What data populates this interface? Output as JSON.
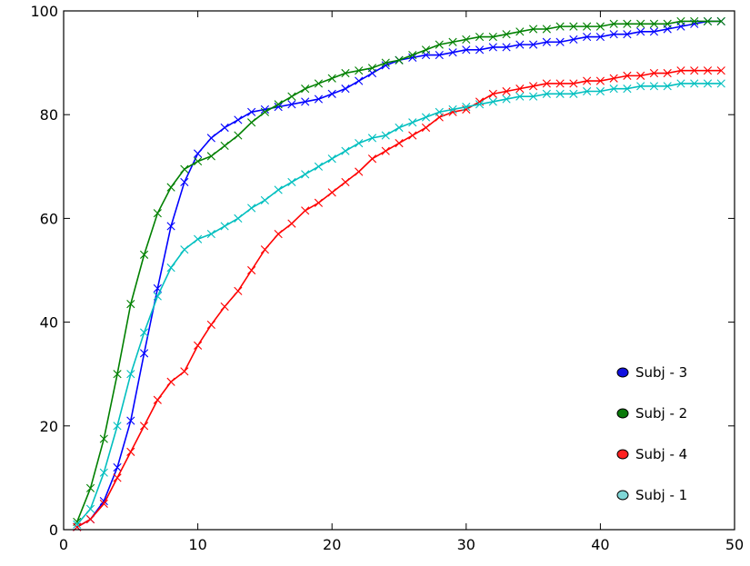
{
  "chart_data": {
    "type": "line",
    "title": "",
    "xlabel": "",
    "ylabel": "",
    "xlim": [
      0,
      50
    ],
    "ylim": [
      0,
      100
    ],
    "xticks": [
      "0",
      "10",
      "20",
      "30",
      "40",
      "50"
    ],
    "yticks": [
      "0",
      "20",
      "40",
      "60",
      "80",
      "100"
    ],
    "grid": false,
    "legend_position": "lower-right",
    "marker": "x",
    "x": [
      1,
      2,
      3,
      4,
      5,
      6,
      7,
      8,
      9,
      10,
      11,
      12,
      13,
      14,
      15,
      16,
      17,
      18,
      19,
      20,
      21,
      22,
      23,
      24,
      25,
      26,
      27,
      28,
      29,
      30,
      31,
      32,
      33,
      34,
      35,
      36,
      37,
      38,
      39,
      40,
      41,
      42,
      43,
      44,
      45,
      46,
      47,
      48,
      49
    ],
    "series": [
      {
        "name": "Subj - 3",
        "color": "#0000ff",
        "legend_marker_color": "#1010e0",
        "values": [
          0.5,
          2,
          5.5,
          12,
          21,
          34,
          46.5,
          58.5,
          67,
          72.5,
          75.5,
          77.5,
          79,
          80.5,
          81,
          81.5,
          82,
          82.5,
          83,
          84,
          85,
          86.5,
          88,
          89.5,
          90.5,
          91,
          91.5,
          91.5,
          92,
          92.5,
          92.5,
          93,
          93,
          93.5,
          93.5,
          94,
          94,
          94.5,
          95,
          95,
          95.5,
          95.5,
          96,
          96,
          96.5,
          97,
          97.5,
          98,
          98
        ]
      },
      {
        "name": "Subj - 2",
        "color": "#008000",
        "legend_marker_color": "#0a7a0a",
        "values": [
          1.5,
          8,
          17.5,
          30,
          43.5,
          53,
          61,
          66,
          69.5,
          71,
          72,
          74,
          76,
          78.5,
          80.5,
          82,
          83.5,
          85,
          86,
          87,
          88,
          88.5,
          89,
          90,
          90.5,
          91.5,
          92.5,
          93.5,
          94,
          94.5,
          95,
          95,
          95.5,
          96,
          96.5,
          96.5,
          97,
          97,
          97,
          97,
          97.5,
          97.5,
          97.5,
          97.5,
          97.5,
          98,
          98,
          98,
          98
        ]
      },
      {
        "name": "Subj - 4",
        "color": "#ff0000",
        "legend_marker_color": "#ff2020",
        "values": [
          0.5,
          2,
          5,
          10,
          15,
          20,
          25,
          28.5,
          30.5,
          35.5,
          39.5,
          43,
          46,
          50,
          54,
          57,
          59,
          61.5,
          63,
          65,
          67,
          69,
          71.5,
          73,
          74.5,
          76,
          77.5,
          79.5,
          80.5,
          81,
          82.5,
          84,
          84.5,
          85,
          85.5,
          86,
          86,
          86,
          86.5,
          86.5,
          87,
          87.5,
          87.5,
          88,
          88,
          88.5,
          88.5,
          88.5,
          88.5
        ]
      },
      {
        "name": "Subj - 1",
        "color": "#00bfbf",
        "legend_marker_color": "#7fd6d6",
        "values": [
          1,
          4,
          11,
          20,
          30,
          38,
          45,
          50.5,
          54,
          56,
          57,
          58.5,
          60,
          62,
          63.5,
          65.5,
          67,
          68.5,
          70,
          71.5,
          73,
          74.5,
          75.5,
          76,
          77.5,
          78.5,
          79.5,
          80.5,
          81,
          81.5,
          82,
          82.5,
          83,
          83.5,
          83.5,
          84,
          84,
          84,
          84.5,
          84.5,
          85,
          85,
          85.5,
          85.5,
          85.5,
          86,
          86,
          86,
          86
        ]
      }
    ],
    "legend": [
      {
        "label": "Subj - 3",
        "series": 0
      },
      {
        "label": "Subj - 2",
        "series": 1
      },
      {
        "label": "Subj - 4",
        "series": 2
      },
      {
        "label": "Subj - 1",
        "series": 3
      }
    ]
  }
}
